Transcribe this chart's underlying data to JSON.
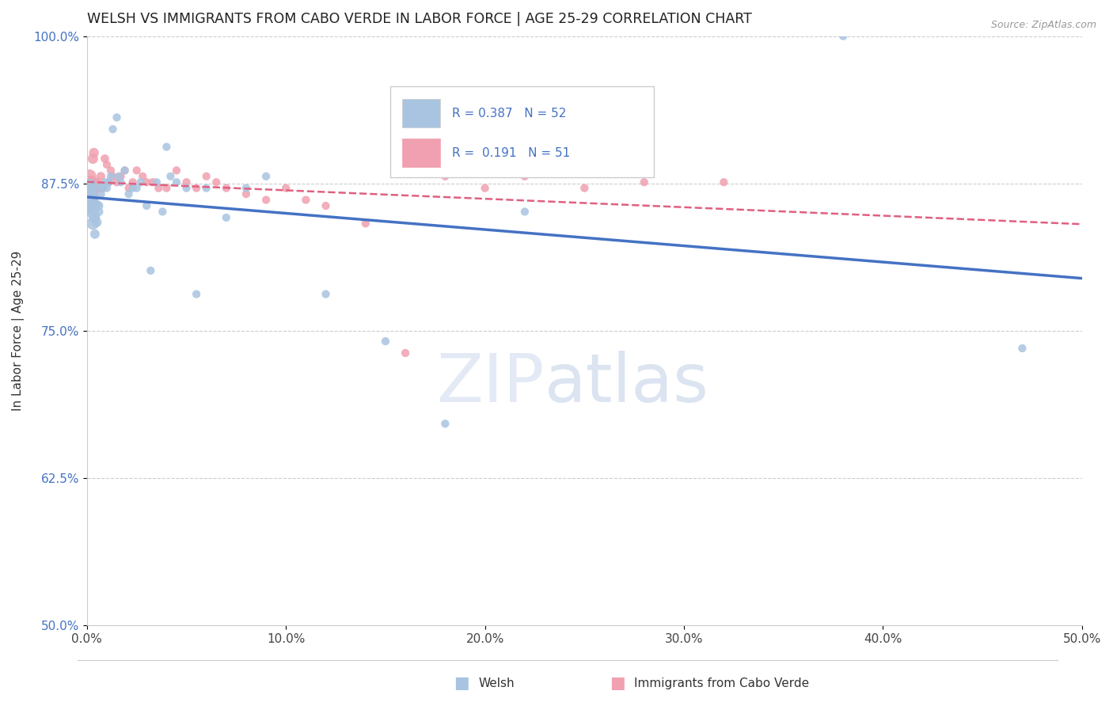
{
  "title": "WELSH VS IMMIGRANTS FROM CABO VERDE IN LABOR FORCE | AGE 25-29 CORRELATION CHART",
  "source": "Source: ZipAtlas.com",
  "ylabel": "In Labor Force | Age 25-29",
  "xlim": [
    0.0,
    0.5
  ],
  "ylim": [
    0.5,
    1.0
  ],
  "yticks": [
    0.5,
    0.625,
    0.75,
    0.875,
    1.0
  ],
  "ytick_labels": [
    "50.0%",
    "62.5%",
    "75.0%",
    "87.5%",
    "100.0%"
  ],
  "xticks": [
    0.0,
    0.1,
    0.2,
    0.3,
    0.4,
    0.5
  ],
  "xtick_labels": [
    "0.0%",
    "10.0%",
    "20.0%",
    "30.0%",
    "40.0%",
    "50.0%"
  ],
  "welsh_R": 0.387,
  "welsh_N": 52,
  "cabo_R": 0.191,
  "cabo_N": 51,
  "welsh_color": "#a8c4e0",
  "cabo_color": "#f0a0b0",
  "welsh_line_color": "#4472c4",
  "cabo_line_color": "#e06080",
  "welsh_x": [
    0.0008,
    0.001,
    0.0012,
    0.0015,
    0.0018,
    0.002,
    0.0022,
    0.0025,
    0.003,
    0.003,
    0.0035,
    0.004,
    0.004,
    0.005,
    0.005,
    0.006,
    0.006,
    0.007,
    0.007,
    0.008,
    0.009,
    0.01,
    0.011,
    0.012,
    0.013,
    0.015,
    0.016,
    0.017,
    0.019,
    0.021,
    0.023,
    0.025,
    0.027,
    0.03,
    0.032,
    0.035,
    0.038,
    0.04,
    0.042,
    0.045,
    0.05,
    0.055,
    0.06,
    0.07,
    0.08,
    0.09,
    0.12,
    0.15,
    0.18,
    0.22,
    0.38,
    0.47
  ],
  "welsh_y": [
    0.871,
    0.86,
    0.855,
    0.873,
    0.865,
    0.856,
    0.862,
    0.851,
    0.841,
    0.852,
    0.846,
    0.846,
    0.832,
    0.857,
    0.842,
    0.856,
    0.851,
    0.872,
    0.866,
    0.872,
    0.876,
    0.871,
    0.876,
    0.881,
    0.921,
    0.931,
    0.881,
    0.876,
    0.886,
    0.866,
    0.871,
    0.871,
    0.876,
    0.856,
    0.801,
    0.876,
    0.851,
    0.906,
    0.881,
    0.876,
    0.871,
    0.781,
    0.871,
    0.846,
    0.871,
    0.881,
    0.781,
    0.741,
    0.671,
    0.851,
    1.0,
    0.735
  ],
  "welsh_sizes": [
    280,
    220,
    180,
    150,
    120,
    200,
    160,
    140,
    130,
    110,
    90,
    90,
    75,
    75,
    75,
    65,
    65,
    60,
    60,
    60,
    55,
    55,
    55,
    55,
    55,
    55,
    55,
    55,
    55,
    55,
    55,
    55,
    55,
    55,
    55,
    55,
    55,
    55,
    55,
    55,
    55,
    55,
    55,
    55,
    55,
    55,
    55,
    55,
    55,
    55,
    55,
    55
  ],
  "cabo_x": [
    0.0008,
    0.001,
    0.0012,
    0.0015,
    0.0018,
    0.002,
    0.0022,
    0.0025,
    0.003,
    0.003,
    0.0035,
    0.004,
    0.005,
    0.006,
    0.007,
    0.008,
    0.009,
    0.01,
    0.011,
    0.012,
    0.013,
    0.015,
    0.017,
    0.019,
    0.021,
    0.023,
    0.025,
    0.028,
    0.03,
    0.033,
    0.036,
    0.04,
    0.045,
    0.05,
    0.055,
    0.06,
    0.065,
    0.07,
    0.08,
    0.09,
    0.1,
    0.11,
    0.12,
    0.14,
    0.16,
    0.18,
    0.2,
    0.22,
    0.25,
    0.28,
    0.32
  ],
  "cabo_y": [
    0.872,
    0.856,
    0.881,
    0.876,
    0.866,
    0.871,
    0.876,
    0.861,
    0.866,
    0.896,
    0.901,
    0.871,
    0.876,
    0.871,
    0.881,
    0.871,
    0.896,
    0.891,
    0.876,
    0.886,
    0.881,
    0.876,
    0.881,
    0.886,
    0.871,
    0.876,
    0.886,
    0.881,
    0.876,
    0.876,
    0.871,
    0.871,
    0.886,
    0.876,
    0.871,
    0.881,
    0.876,
    0.871,
    0.866,
    0.861,
    0.871,
    0.861,
    0.856,
    0.841,
    0.731,
    0.881,
    0.871,
    0.881,
    0.871,
    0.876,
    0.876
  ],
  "cabo_sizes": [
    240,
    190,
    160,
    130,
    100,
    170,
    140,
    120,
    110,
    90,
    80,
    75,
    70,
    65,
    65,
    60,
    60,
    55,
    55,
    55,
    55,
    55,
    55,
    55,
    55,
    55,
    55,
    55,
    55,
    55,
    55,
    55,
    55,
    55,
    55,
    55,
    55,
    55,
    55,
    55,
    55,
    55,
    55,
    55,
    55,
    55,
    55,
    55,
    55,
    55,
    55
  ]
}
